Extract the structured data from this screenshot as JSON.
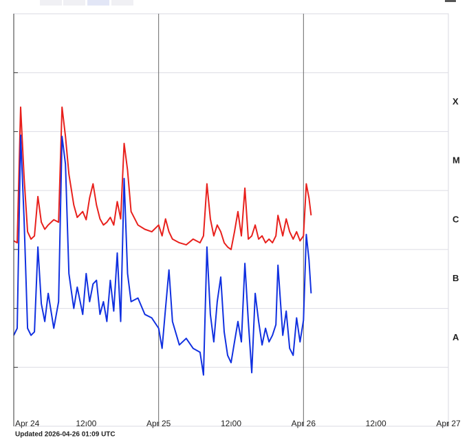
{
  "chart_data": {
    "type": "line",
    "footer": "Updated 2026-04-26 01:09 UTC",
    "log_y": true,
    "ylim": [
      1e-09,
      0.01
    ],
    "yticks": [
      1e-08,
      1e-07,
      1e-06,
      1e-05,
      0.0001,
      0.001
    ],
    "class_labels": [
      "A",
      "B",
      "C",
      "M",
      "X"
    ],
    "xlim": [
      0,
      72
    ],
    "xticks": [
      {
        "value": 0,
        "label": "Apr 24"
      },
      {
        "value": 12,
        "label": "12:00"
      },
      {
        "value": 24,
        "label": "Apr 25"
      },
      {
        "value": 36,
        "label": "12:00"
      },
      {
        "value": 48,
        "label": "Apr 26"
      },
      {
        "value": 60,
        "label": "12:00"
      },
      {
        "value": 72,
        "label": "Apr 27"
      }
    ],
    "x": [
      0,
      0.57,
      1.14,
      1.71,
      2.29,
      2.86,
      3.43,
      4.0,
      4.57,
      5.14,
      5.71,
      6.63,
      7.43,
      8.0,
      8.57,
      9.14,
      9.94,
      10.51,
      11.43,
      12.0,
      12.57,
      13.14,
      13.71,
      14.29,
      14.86,
      15.43,
      16.0,
      16.57,
      17.14,
      17.71,
      18.29,
      18.86,
      19.43,
      20.57,
      21.71,
      22.86,
      24.0,
      24.57,
      25.14,
      25.71,
      26.29,
      27.43,
      28.57,
      29.71,
      30.86,
      31.43,
      32.0,
      32.57,
      33.14,
      33.71,
      34.29,
      34.86,
      35.43,
      36.0,
      36.57,
      37.14,
      37.71,
      38.29,
      38.86,
      39.43,
      40.0,
      40.57,
      41.14,
      41.71,
      42.29,
      42.86,
      43.43,
      43.77,
      44.57,
      45.14,
      45.71,
      46.29,
      46.86,
      47.43,
      48.0,
      48.46,
      48.91,
      49.26
    ],
    "series": [
      {
        "color": "#e8201c",
        "values": [
          1.4e-06,
          1.3e-06,
          0.00026,
          1.7e-05,
          2e-06,
          1.5e-06,
          1.7e-06,
          7.9e-06,
          2.9e-06,
          2.2e-06,
          2.6e-06,
          3.2e-06,
          2.9e-06,
          0.00026,
          8.3e-05,
          1.9e-05,
          5.7e-06,
          3.5e-06,
          4.4e-06,
          3.2e-06,
          7.5e-06,
          1.3e-05,
          5.7e-06,
          3.3e-06,
          2.6e-06,
          2.9e-06,
          3.5e-06,
          2.6e-06,
          6.5e-06,
          3.3e-06,
          6.3e-05,
          2.2e-05,
          4.4e-06,
          2.6e-06,
          2.2e-06,
          2e-06,
          2.6e-06,
          1.7e-06,
          3.3e-06,
          2e-06,
          1.5e-06,
          1.3e-06,
          1.2e-06,
          1.5e-06,
          1.3e-06,
          1.7e-06,
          1.3e-05,
          3.3e-06,
          1.7e-06,
          2.6e-06,
          2e-06,
          1.3e-06,
          1.1e-06,
          1e-06,
          2e-06,
          4.4e-06,
          1.7e-06,
          1.1e-05,
          1.5e-06,
          1.7e-06,
          2.6e-06,
          1.5e-06,
          1.7e-06,
          1.3e-06,
          1.5e-06,
          1.3e-06,
          1.7e-06,
          3.8e-06,
          1.7e-06,
          3.3e-06,
          2e-06,
          1.5e-06,
          2e-06,
          1.4e-06,
          1.7e-06,
          1.3e-05,
          7.5e-06,
          3.8e-06
        ]
      },
      {
        "color": "#1030e0",
        "values": [
          3.5e-08,
          4.6e-08,
          8.7e-05,
          3.3e-06,
          4.6e-08,
          3.5e-08,
          4e-08,
          1.1e-06,
          1.2e-07,
          6e-08,
          1.8e-07,
          4.6e-08,
          1.3e-07,
          8.3e-05,
          2.8e-05,
          3.9e-07,
          1e-07,
          2.3e-07,
          7.9e-08,
          3.9e-07,
          1.3e-07,
          2.6e-07,
          3e-07,
          7.9e-08,
          1.3e-07,
          6e-08,
          3e-07,
          9e-08,
          8.7e-07,
          6e-08,
          1.6e-05,
          3.9e-07,
          1.3e-07,
          1.5e-07,
          7.9e-08,
          6.9e-08,
          4.6e-08,
          2.1e-08,
          1e-07,
          4.5e-07,
          6e-08,
          2.4e-08,
          3.1e-08,
          2.1e-08,
          1.8e-08,
          7.4e-09,
          1.1e-06,
          7.9e-08,
          2.7e-08,
          1.3e-07,
          3.4e-07,
          4e-08,
          1.6e-08,
          1.2e-08,
          2.7e-08,
          6e-08,
          2.7e-08,
          5.8e-07,
          6e-08,
          8.1e-09,
          1.8e-07,
          6e-08,
          2.4e-08,
          4.6e-08,
          2.7e-08,
          3.5e-08,
          5.3e-08,
          5.4e-07,
          3.5e-08,
          9e-08,
          2.1e-08,
          1.6e-08,
          6.9e-08,
          2.7e-08,
          6.3e-08,
          1.8e-06,
          6.7e-07,
          1.8e-07
        ]
      }
    ]
  }
}
